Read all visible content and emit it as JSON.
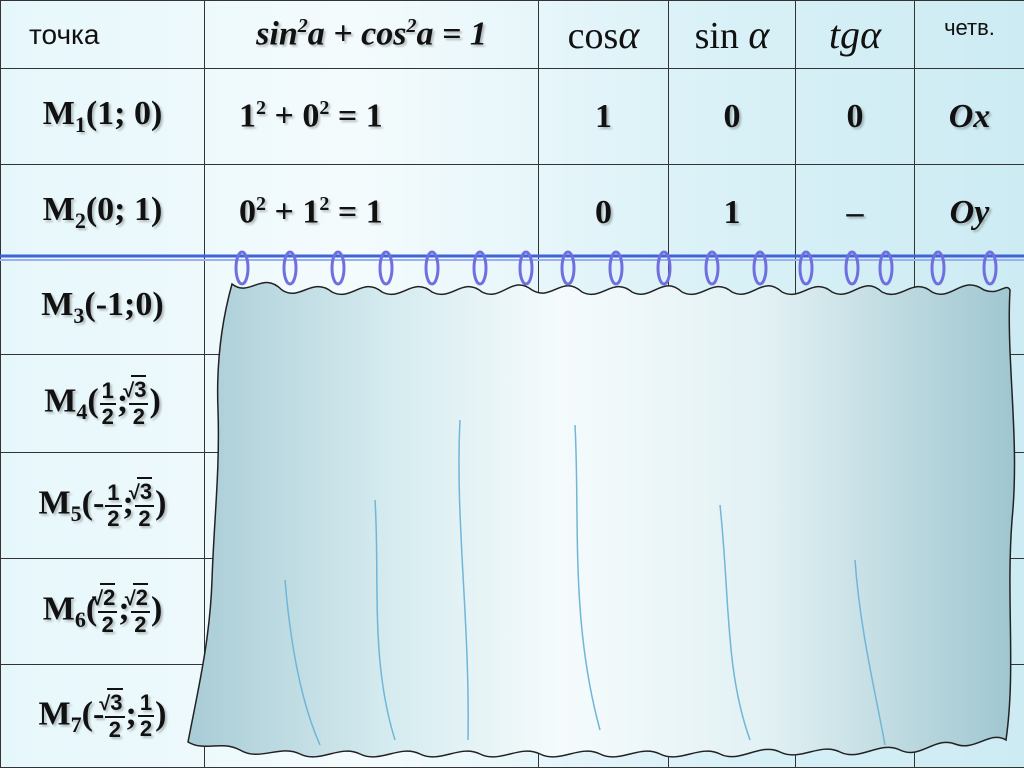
{
  "header": {
    "point": "точка",
    "identity": "sin²a + cos²a = 1",
    "cos": "cos",
    "sin": "sin",
    "tg": "tg",
    "alpha": "α",
    "quarter": "четв."
  },
  "rows": [
    {
      "letter": "M",
      "index": "1",
      "coords": "(1; 0)",
      "calc": "1² + 0² = 1",
      "cos": "1",
      "sin": "0",
      "tg": "0",
      "quarter": "Ox"
    },
    {
      "letter": "M",
      "index": "2",
      "coords": "(0; 1)",
      "calc": "0² + 1² = 1",
      "cos": "0",
      "sin": "1",
      "tg": "–",
      "quarter": "Oy"
    },
    {
      "letter": "M",
      "index": "3",
      "coords": "(-1;0)"
    },
    {
      "letter": "M",
      "index": "4",
      "open": "(",
      "x_num": "1",
      "x_den": "2",
      "sep": ";",
      "y_num": "3",
      "y_den": "2",
      "close": ")"
    },
    {
      "letter": "M",
      "index": "5",
      "open": "(-",
      "x_num": "1",
      "x_den": "2",
      "sep": ";",
      "y_num": "3",
      "y_den": "2",
      "close": ")"
    },
    {
      "letter": "M",
      "index": "6",
      "open": "(",
      "x_num": "2",
      "x_den": "2",
      "sep": ";",
      "y_num": "2",
      "y_den": "2",
      "close": ")"
    },
    {
      "letter": "M",
      "index": "7",
      "open": "(-",
      "x_num": "3",
      "x_den": "2",
      "sep": ";",
      "y_num": "1",
      "y_den": "2",
      "close": ")"
    }
  ],
  "colors": {
    "point_header": "#e3141d",
    "identity": "#1a2ab3",
    "curtain_rod": "#3f63d8",
    "curtain_ring": "#6f6fe0",
    "curtain_fill": "#c5e3ea"
  }
}
